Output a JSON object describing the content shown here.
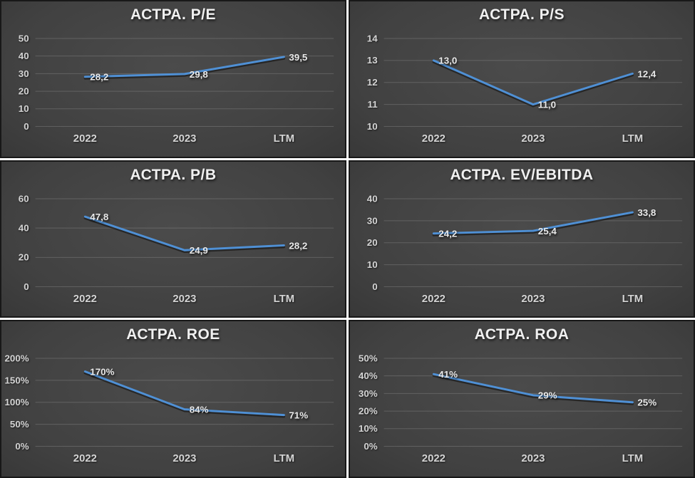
{
  "colors": {
    "background_gap": "#ffffff",
    "panel_border": "#181818",
    "panel_center": "#4b4b4b",
    "panel_edge": "#232323",
    "gridline": "rgba(255,255,255,0.16)",
    "title_text": "#f0f0f0",
    "axis_text": "#d4d4d4",
    "data_label_text": "#e9e9e9",
    "series_line": "#4f90d5"
  },
  "chart_data": [
    {
      "type": "line",
      "title": "АСТРА. P/E",
      "categories": [
        "2022",
        "2023",
        "LTM"
      ],
      "values": [
        28.2,
        29.8,
        39.5
      ],
      "value_labels": [
        "28,2",
        "29,8",
        "39,5"
      ],
      "y_ticks": [
        {
          "value": 0,
          "label": "0"
        },
        {
          "value": 10,
          "label": "10"
        },
        {
          "value": 20,
          "label": "20"
        },
        {
          "value": 30,
          "label": "30"
        },
        {
          "value": 40,
          "label": "40"
        },
        {
          "value": 50,
          "label": "50"
        }
      ],
      "ylim": [
        0,
        50
      ],
      "grid": true,
      "legend": "none"
    },
    {
      "type": "line",
      "title": "АСТРА. P/S",
      "categories": [
        "2022",
        "2023",
        "LTM"
      ],
      "values": [
        13.0,
        11.0,
        12.4
      ],
      "value_labels": [
        "13,0",
        "11,0",
        "12,4"
      ],
      "y_ticks": [
        {
          "value": 10,
          "label": "10"
        },
        {
          "value": 11,
          "label": "11"
        },
        {
          "value": 12,
          "label": "12"
        },
        {
          "value": 13,
          "label": "13"
        },
        {
          "value": 14,
          "label": "14"
        }
      ],
      "ylim": [
        10,
        14
      ],
      "grid": true,
      "legend": "none"
    },
    {
      "type": "line",
      "title": "АСТРА. P/B",
      "categories": [
        "2022",
        "2023",
        "LTM"
      ],
      "values": [
        47.8,
        24.9,
        28.2
      ],
      "value_labels": [
        "47,8",
        "24,9",
        "28,2"
      ],
      "y_ticks": [
        {
          "value": 0,
          "label": "0"
        },
        {
          "value": 20,
          "label": "20"
        },
        {
          "value": 40,
          "label": "40"
        },
        {
          "value": 60,
          "label": "60"
        }
      ],
      "ylim": [
        0,
        60
      ],
      "grid": true,
      "legend": "none"
    },
    {
      "type": "line",
      "title": "АСТРА. EV/EBITDA",
      "categories": [
        "2022",
        "2023",
        "LTM"
      ],
      "values": [
        24.2,
        25.4,
        33.8
      ],
      "value_labels": [
        "24,2",
        "25,4",
        "33,8"
      ],
      "y_ticks": [
        {
          "value": 0,
          "label": "0"
        },
        {
          "value": 10,
          "label": "10"
        },
        {
          "value": 20,
          "label": "20"
        },
        {
          "value": 30,
          "label": "30"
        },
        {
          "value": 40,
          "label": "40"
        }
      ],
      "ylim": [
        0,
        40
      ],
      "grid": true,
      "legend": "none"
    },
    {
      "type": "line",
      "title": "АСТРА. ROE",
      "categories": [
        "2022",
        "2023",
        "LTM"
      ],
      "values": [
        170,
        84,
        71
      ],
      "value_labels": [
        "170%",
        "84%",
        "71%"
      ],
      "y_ticks": [
        {
          "value": 0,
          "label": "0%"
        },
        {
          "value": 50,
          "label": "50%"
        },
        {
          "value": 100,
          "label": "100%"
        },
        {
          "value": 150,
          "label": "150%"
        },
        {
          "value": 200,
          "label": "200%"
        }
      ],
      "ylim": [
        0,
        200
      ],
      "grid": true,
      "legend": "none"
    },
    {
      "type": "line",
      "title": "АСТРА. ROA",
      "categories": [
        "2022",
        "2023",
        "LTM"
      ],
      "values": [
        41,
        29,
        25
      ],
      "value_labels": [
        "41%",
        "29%",
        "25%"
      ],
      "y_ticks": [
        {
          "value": 0,
          "label": "0%"
        },
        {
          "value": 10,
          "label": "10%"
        },
        {
          "value": 20,
          "label": "20%"
        },
        {
          "value": 30,
          "label": "30%"
        },
        {
          "value": 40,
          "label": "40%"
        },
        {
          "value": 50,
          "label": "50%"
        }
      ],
      "ylim": [
        0,
        50
      ],
      "grid": true,
      "legend": "none"
    }
  ]
}
